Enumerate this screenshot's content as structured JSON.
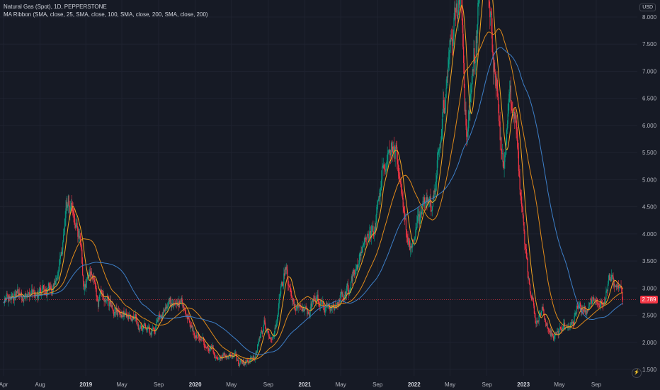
{
  "symbol_title": "Natural Gas (Spot), 1D, PEPPERSTONE",
  "indicator_title": "MA Ribbon (SMA, close, 25, SMA, close, 100, SMA, close, 200, SMA, close, 200)",
  "currency_label": "USD",
  "last_price_label": "2.789",
  "flash_icon_glyph": "⚡",
  "colors": {
    "background": "#161a25",
    "grid": "#1f2330",
    "up_candle": "#089981",
    "down_candle": "#f23645",
    "ma25": "#f5a623",
    "ma100": "#e08a1a",
    "ma200": "#3d7fc8",
    "ma200b": "#d3a52a",
    "last_price_line": "#f23645"
  },
  "chart_data": {
    "type": "candlestick",
    "title": "",
    "y_ticks": [
      "8.000",
      "7.500",
      "7.000",
      "6.500",
      "6.000",
      "5.500",
      "5.000",
      "4.500",
      "4.000",
      "3.500",
      "3.000",
      "2.500",
      "2.000",
      "1.500"
    ],
    "ylim": [
      1.45,
      8.3
    ],
    "x_ticks": [
      {
        "label": "Apr",
        "date": "2018-04-01",
        "bold": false
      },
      {
        "label": "Aug",
        "date": "2018-08-01",
        "bold": false
      },
      {
        "label": "2019",
        "date": "2019-01-01",
        "bold": true
      },
      {
        "label": "May",
        "date": "2019-05-01",
        "bold": false
      },
      {
        "label": "Sep",
        "date": "2019-09-01",
        "bold": false
      },
      {
        "label": "2020",
        "date": "2020-01-01",
        "bold": true
      },
      {
        "label": "May",
        "date": "2020-05-01",
        "bold": false
      },
      {
        "label": "Sep",
        "date": "2020-09-01",
        "bold": false
      },
      {
        "label": "2021",
        "date": "2021-01-01",
        "bold": true
      },
      {
        "label": "May",
        "date": "2021-05-01",
        "bold": false
      },
      {
        "label": "Sep",
        "date": "2021-09-01",
        "bold": false
      },
      {
        "label": "2022",
        "date": "2022-01-01",
        "bold": true
      },
      {
        "label": "May",
        "date": "2022-05-01",
        "bold": false
      },
      {
        "label": "Sep",
        "date": "2022-09-01",
        "bold": false
      },
      {
        "label": "2023",
        "date": "2023-01-01",
        "bold": true
      },
      {
        "label": "May",
        "date": "2023-05-01",
        "bold": false
      },
      {
        "label": "Sep",
        "date": "2023-09-01",
        "bold": false
      }
    ],
    "xlim": [
      "2018-04-01",
      "2023-11-30"
    ],
    "last_price": 2.789,
    "price_path": [
      [
        "2018-04-01",
        2.72
      ],
      [
        "2018-05-01",
        2.82
      ],
      [
        "2018-06-01",
        2.92
      ],
      [
        "2018-07-01",
        2.85
      ],
      [
        "2018-08-01",
        2.9
      ],
      [
        "2018-09-01",
        3.0
      ],
      [
        "2018-10-01",
        3.25
      ],
      [
        "2018-11-01",
        4.6
      ],
      [
        "2018-11-20",
        4.2
      ],
      [
        "2018-12-10",
        3.9
      ],
      [
        "2018-12-25",
        3.1
      ],
      [
        "2019-01-15",
        3.3
      ],
      [
        "2019-02-10",
        2.8
      ],
      [
        "2019-03-15",
        2.75
      ],
      [
        "2019-05-01",
        2.6
      ],
      [
        "2019-06-15",
        2.35
      ],
      [
        "2019-08-01",
        2.2
      ],
      [
        "2019-09-15",
        2.55
      ],
      [
        "2019-10-25",
        2.75
      ],
      [
        "2019-11-15",
        2.65
      ],
      [
        "2019-12-15",
        2.25
      ],
      [
        "2020-01-15",
        2.05
      ],
      [
        "2020-02-15",
        1.85
      ],
      [
        "2020-03-15",
        1.75
      ],
      [
        "2020-04-15",
        1.8
      ],
      [
        "2020-05-15",
        1.75
      ],
      [
        "2020-06-20",
        1.65
      ],
      [
        "2020-07-20",
        1.75
      ],
      [
        "2020-08-20",
        2.4
      ],
      [
        "2020-09-20",
        2.0
      ],
      [
        "2020-10-15",
        3.0
      ],
      [
        "2020-11-01",
        3.35
      ],
      [
        "2020-11-20",
        2.75
      ],
      [
        "2020-12-20",
        2.6
      ],
      [
        "2021-01-15",
        2.55
      ],
      [
        "2021-02-10",
        2.9
      ],
      [
        "2021-03-15",
        2.6
      ],
      [
        "2021-04-15",
        2.65
      ],
      [
        "2021-05-15",
        2.9
      ],
      [
        "2021-06-15",
        3.3
      ],
      [
        "2021-07-15",
        3.8
      ],
      [
        "2021-08-15",
        4.0
      ],
      [
        "2021-09-15",
        5.2
      ],
      [
        "2021-10-05",
        5.6
      ],
      [
        "2021-10-25",
        5.4
      ],
      [
        "2021-11-20",
        4.9
      ],
      [
        "2021-12-10",
        3.9
      ],
      [
        "2021-12-25",
        3.75
      ],
      [
        "2022-01-15",
        4.2
      ],
      [
        "2022-02-10",
        4.5
      ],
      [
        "2022-03-10",
        4.7
      ],
      [
        "2022-03-31",
        5.6
      ],
      [
        "2022-04-20",
        7.0
      ],
      [
        "2022-05-15",
        8.0
      ],
      [
        "2022-06-05",
        8.6
      ],
      [
        "2022-06-25",
        5.9
      ],
      [
        "2022-07-15",
        7.0
      ],
      [
        "2022-08-05",
        8.3
      ],
      [
        "2022-08-25",
        9.2
      ],
      [
        "2022-09-15",
        7.8
      ],
      [
        "2022-10-05",
        6.6
      ],
      [
        "2022-10-25",
        5.4
      ],
      [
        "2022-11-15",
        6.3
      ],
      [
        "2022-12-05",
        6.1
      ],
      [
        "2022-12-25",
        4.6
      ],
      [
        "2023-01-15",
        3.3
      ],
      [
        "2023-02-10",
        2.5
      ],
      [
        "2023-03-05",
        2.55
      ],
      [
        "2023-03-25",
        2.15
      ],
      [
        "2023-04-15",
        2.1
      ],
      [
        "2023-05-05",
        2.2
      ],
      [
        "2023-05-25",
        2.3
      ],
      [
        "2023-06-15",
        2.4
      ],
      [
        "2023-07-05",
        2.7
      ],
      [
        "2023-07-25",
        2.6
      ],
      [
        "2023-08-15",
        2.75
      ],
      [
        "2023-09-05",
        2.65
      ],
      [
        "2023-09-25",
        2.8
      ],
      [
        "2023-10-15",
        3.3
      ],
      [
        "2023-11-05",
        3.0
      ],
      [
        "2023-11-30",
        2.79
      ]
    ],
    "ma_periods": [
      25,
      100,
      200,
      200
    ]
  }
}
